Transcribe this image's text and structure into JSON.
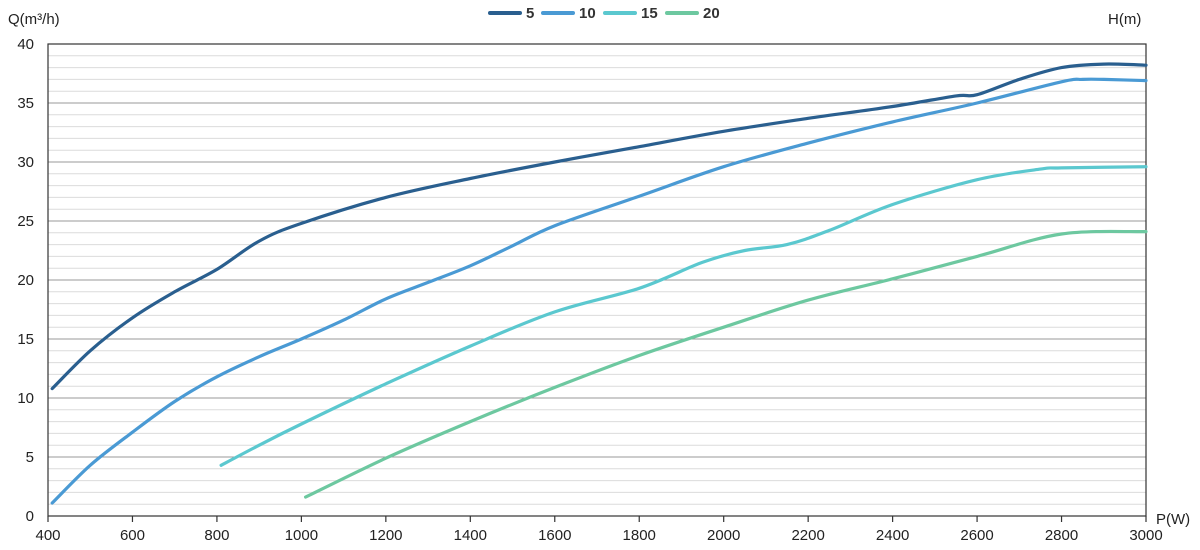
{
  "chart_data": {
    "type": "line",
    "title": "",
    "xlabel": "P(W)",
    "ylabel_left": "Q(m³/h)",
    "ylabel_right": "H(m)",
    "xlim": [
      400,
      3000
    ],
    "ylim": [
      0,
      40
    ],
    "grid": true,
    "legend_position": "top-center",
    "x_ticks": [
      "400",
      "600",
      "800",
      "1000",
      "1200",
      "1400",
      "1600",
      "1800",
      "2000",
      "2200",
      "2400",
      "2600",
      "2800",
      "3000"
    ],
    "y_ticks": [
      "0",
      "5",
      "10",
      "15",
      "20",
      "25",
      "30",
      "35",
      "40"
    ],
    "series": [
      {
        "name": "5",
        "color": "#2a5f8f",
        "points": [
          [
            410,
            10.8
          ],
          [
            500,
            14.0
          ],
          [
            600,
            16.8
          ],
          [
            700,
            19.0
          ],
          [
            800,
            20.9
          ],
          [
            900,
            23.3
          ],
          [
            1000,
            24.8
          ],
          [
            1200,
            27.0
          ],
          [
            1400,
            28.6
          ],
          [
            1600,
            30.0
          ],
          [
            1800,
            31.3
          ],
          [
            2000,
            32.6
          ],
          [
            2200,
            33.7
          ],
          [
            2400,
            34.7
          ],
          [
            2550,
            35.6
          ],
          [
            2600,
            35.7
          ],
          [
            2700,
            37.0
          ],
          [
            2800,
            38.0
          ],
          [
            2900,
            38.3
          ],
          [
            3000,
            38.2
          ]
        ]
      },
      {
        "name": "10",
        "color": "#4a9ad4",
        "points": [
          [
            410,
            1.1
          ],
          [
            500,
            4.3
          ],
          [
            600,
            7.1
          ],
          [
            700,
            9.7
          ],
          [
            800,
            11.8
          ],
          [
            900,
            13.5
          ],
          [
            1000,
            15.0
          ],
          [
            1100,
            16.6
          ],
          [
            1200,
            18.4
          ],
          [
            1300,
            19.8
          ],
          [
            1400,
            21.2
          ],
          [
            1500,
            22.9
          ],
          [
            1600,
            24.6
          ],
          [
            1800,
            27.1
          ],
          [
            2000,
            29.6
          ],
          [
            2200,
            31.6
          ],
          [
            2400,
            33.4
          ],
          [
            2600,
            35.0
          ],
          [
            2800,
            36.8
          ],
          [
            2850,
            37.0
          ],
          [
            2900,
            37.0
          ],
          [
            3000,
            36.9
          ]
        ]
      },
      {
        "name": "15",
        "color": "#5bc8cf",
        "points": [
          [
            810,
            4.3
          ],
          [
            900,
            6.0
          ],
          [
            1000,
            7.8
          ],
          [
            1200,
            11.2
          ],
          [
            1400,
            14.4
          ],
          [
            1600,
            17.3
          ],
          [
            1800,
            19.3
          ],
          [
            1950,
            21.5
          ],
          [
            2050,
            22.5
          ],
          [
            2150,
            23.0
          ],
          [
            2250,
            24.2
          ],
          [
            2400,
            26.4
          ],
          [
            2600,
            28.5
          ],
          [
            2750,
            29.4
          ],
          [
            2800,
            29.5
          ],
          [
            3000,
            29.6
          ]
        ]
      },
      {
        "name": "20",
        "color": "#6dc8a0",
        "points": [
          [
            1010,
            1.6
          ],
          [
            1200,
            4.9
          ],
          [
            1400,
            8.0
          ],
          [
            1600,
            10.9
          ],
          [
            1800,
            13.6
          ],
          [
            2000,
            16.0
          ],
          [
            2200,
            18.3
          ],
          [
            2400,
            20.1
          ],
          [
            2600,
            22.0
          ],
          [
            2800,
            23.9
          ],
          [
            3000,
            24.1
          ]
        ]
      }
    ]
  }
}
